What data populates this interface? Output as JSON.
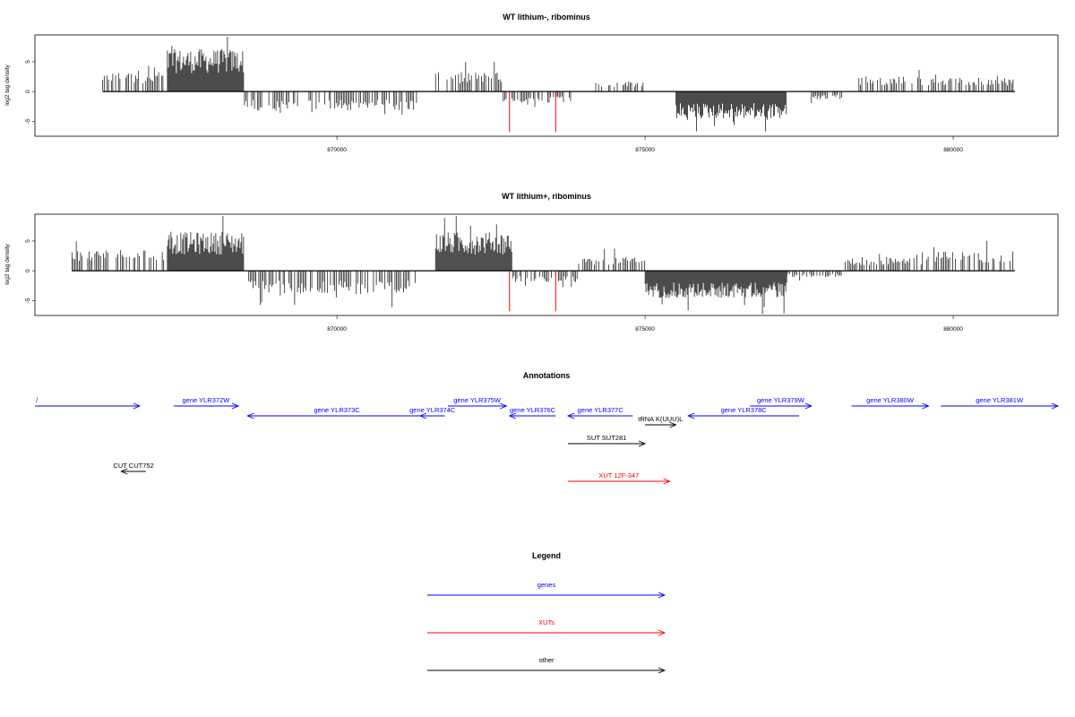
{
  "colors": {
    "signal": "#000000",
    "highlight": "#ff0000",
    "gene": "#0000ff",
    "xut": "#ff0000",
    "other": "#000000"
  },
  "chart_data": [
    {
      "type": "bar",
      "title": "WT lithium-, ribominus",
      "ylabel": "log2 tag density",
      "xlim": [
        865100,
        881700
      ],
      "ylim": [
        -7.5,
        9.5
      ],
      "xticks": [
        "870000",
        "875000",
        "880000"
      ],
      "yticks": [
        "-5",
        "0",
        "5"
      ],
      "baseline_range": [
        866200,
        881000
      ],
      "highlight_positions": [
        872800,
        873550
      ],
      "segments": [
        {
          "start": 866200,
          "end": 867200,
          "mean": 2.5
        },
        {
          "start": 867250,
          "end": 868500,
          "mean": 5.5
        },
        {
          "start": 868500,
          "end": 871300,
          "mean": -2.5
        },
        {
          "start": 871600,
          "end": 872700,
          "mean": 2.5
        },
        {
          "start": 872700,
          "end": 873800,
          "mean": -1.5
        },
        {
          "start": 874200,
          "end": 875000,
          "mean": 1.2
        },
        {
          "start": 875500,
          "end": 877300,
          "mean": -3.5
        },
        {
          "start": 877700,
          "end": 878200,
          "mean": -1.0
        },
        {
          "start": 878400,
          "end": 879500,
          "mean": 2.0
        },
        {
          "start": 879600,
          "end": 881000,
          "mean": 1.8
        }
      ]
    },
    {
      "type": "bar",
      "title": "WT lithium+, ribominus",
      "ylabel": "log2 tag density",
      "xlim": [
        865100,
        881700
      ],
      "ylim": [
        -7.5,
        9.5
      ],
      "xticks": [
        "870000",
        "875000",
        "880000"
      ],
      "yticks": [
        "-5",
        "0",
        "5"
      ],
      "baseline_range": [
        865700,
        881000
      ],
      "highlight_positions": [
        872800,
        873550
      ],
      "segments": [
        {
          "start": 865700,
          "end": 867200,
          "mean": 2.8
        },
        {
          "start": 867250,
          "end": 868500,
          "mean": 5.0
        },
        {
          "start": 868500,
          "end": 871300,
          "mean": -3.0
        },
        {
          "start": 871600,
          "end": 872850,
          "mean": 5.0
        },
        {
          "start": 872850,
          "end": 873900,
          "mean": -1.5
        },
        {
          "start": 873900,
          "end": 875000,
          "mean": 1.8
        },
        {
          "start": 875000,
          "end": 877300,
          "mean": -3.5
        },
        {
          "start": 877300,
          "end": 878200,
          "mean": -0.8
        },
        {
          "start": 878200,
          "end": 879500,
          "mean": 1.8
        },
        {
          "start": 879500,
          "end": 881000,
          "mean": 2.5
        }
      ]
    }
  ],
  "annotations": {
    "title": "Annotations",
    "features": [
      {
        "label": "/",
        "start": 865100,
        "end": 866800,
        "strand": "+",
        "kind": "gene",
        "row": 0
      },
      {
        "label": "gene YLR372W",
        "start": 867350,
        "end": 868400,
        "strand": "+",
        "kind": "gene",
        "row": 0
      },
      {
        "label": "gene YLR373C",
        "start": 868550,
        "end": 871450,
        "strand": "-",
        "kind": "gene",
        "row": 1
      },
      {
        "label": "gene YLR374C",
        "start": 871350,
        "end": 871750,
        "strand": "-",
        "kind": "gene",
        "row": 1
      },
      {
        "label": "gene YLR375W",
        "start": 871800,
        "end": 872750,
        "strand": "+",
        "kind": "gene",
        "row": 0
      },
      {
        "label": "gene YLR376C",
        "start": 872800,
        "end": 873550,
        "strand": "-",
        "kind": "gene",
        "row": 1
      },
      {
        "label": "gene YLR377C",
        "start": 873750,
        "end": 874800,
        "strand": "-",
        "kind": "gene",
        "row": 1
      },
      {
        "label": "tRNA K(UUU)L",
        "start": 875000,
        "end": 875500,
        "strand": "+",
        "kind": "other",
        "row": 2
      },
      {
        "label": "gene YLR378C",
        "start": 875700,
        "end": 877500,
        "strand": "-",
        "kind": "gene",
        "row": 1
      },
      {
        "label": "gene YLR379W",
        "start": 876700,
        "end": 877700,
        "strand": "+",
        "kind": "gene",
        "row": 0
      },
      {
        "label": "gene YLR380W",
        "start": 878350,
        "end": 879600,
        "strand": "+",
        "kind": "gene",
        "row": 0
      },
      {
        "label": "gene YLR381W",
        "start": 879800,
        "end": 881700,
        "strand": "+",
        "kind": "gene",
        "row": 0
      },
      {
        "label": "SUT SUT281",
        "start": 873750,
        "end": 875000,
        "strand": "+",
        "kind": "other",
        "row": 3
      },
      {
        "label": "CUT CUT752",
        "start": 866500,
        "end": 866900,
        "strand": "-",
        "kind": "other",
        "row": 4
      },
      {
        "label": "XUT 12F-347",
        "start": 873750,
        "end": 875400,
        "strand": "+",
        "kind": "xut",
        "row": 5
      }
    ]
  },
  "legend": {
    "title": "Legend",
    "items": [
      {
        "label": "genes",
        "kind": "gene"
      },
      {
        "label": "XUTs",
        "kind": "xut"
      },
      {
        "label": "other",
        "kind": "other"
      }
    ]
  }
}
